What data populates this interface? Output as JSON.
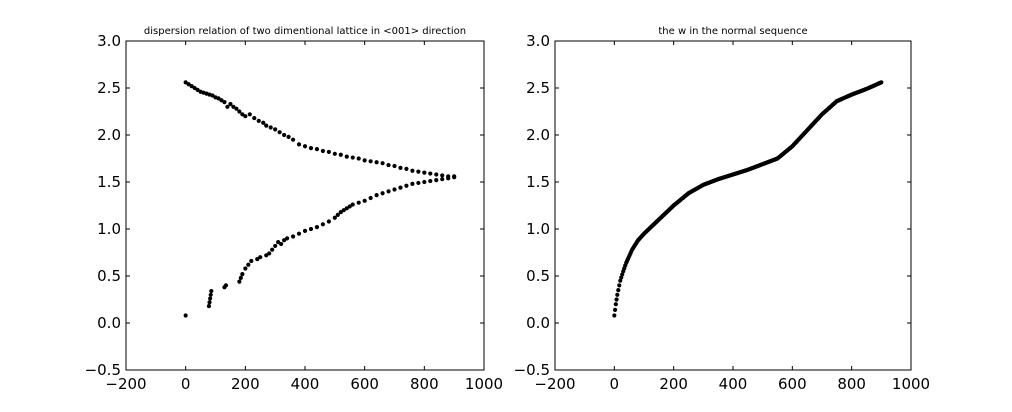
{
  "chart_data": [
    {
      "type": "scatter",
      "title": "dispersion relation of two dimentional lattice in <001> direction",
      "xlabel": "",
      "ylabel": "",
      "xlim": [
        -200,
        1000
      ],
      "ylim": [
        -0.5,
        3.0
      ],
      "xticks": [
        "−200",
        "0",
        "200",
        "400",
        "600",
        "800",
        "1000"
      ],
      "yticks": [
        "−0.5",
        "0.0",
        "0.5",
        "1.0",
        "1.5",
        "2.0",
        "2.5",
        "3.0"
      ],
      "grid": false,
      "marker_color": "#000000",
      "series": [
        {
          "name": "",
          "x": [
            0,
            10,
            20,
            30,
            40,
            50,
            60,
            70,
            80,
            90,
            100,
            110,
            120,
            130,
            140,
            150,
            160,
            170,
            180,
            190,
            200,
            215,
            230,
            245,
            260,
            270,
            285,
            300,
            315,
            330,
            345,
            360,
            380,
            400,
            420,
            440,
            460,
            480,
            500,
            520,
            540,
            560,
            580,
            600,
            620,
            640,
            660,
            680,
            700,
            720,
            740,
            760,
            780,
            800,
            820,
            840,
            860,
            880,
            900,
            0,
            78,
            80,
            82,
            84,
            86,
            130,
            135,
            180,
            185,
            190,
            200,
            210,
            220,
            240,
            250,
            270,
            280,
            290,
            300,
            310,
            320,
            330,
            340,
            360,
            380,
            400,
            420,
            440,
            460,
            480,
            500,
            510,
            520,
            530,
            540,
            550,
            560,
            580,
            600,
            620,
            640,
            660,
            680,
            700,
            720,
            740,
            760,
            780,
            800,
            820,
            840,
            860,
            880,
            900
          ],
          "y": [
            2.56,
            2.54,
            2.52,
            2.5,
            2.48,
            2.46,
            2.45,
            2.44,
            2.43,
            2.42,
            2.4,
            2.39,
            2.37,
            2.35,
            2.3,
            2.33,
            2.3,
            2.28,
            2.25,
            2.22,
            2.2,
            2.22,
            2.18,
            2.15,
            2.13,
            2.1,
            2.08,
            2.06,
            2.03,
            2.0,
            1.98,
            1.95,
            1.9,
            1.88,
            1.86,
            1.85,
            1.83,
            1.82,
            1.8,
            1.79,
            1.77,
            1.76,
            1.75,
            1.73,
            1.72,
            1.71,
            1.7,
            1.68,
            1.67,
            1.65,
            1.64,
            1.62,
            1.61,
            1.6,
            1.59,
            1.58,
            1.57,
            1.56,
            1.56,
            0.08,
            0.18,
            0.22,
            0.26,
            0.3,
            0.34,
            0.38,
            0.4,
            0.44,
            0.48,
            0.52,
            0.58,
            0.62,
            0.66,
            0.68,
            0.7,
            0.72,
            0.74,
            0.78,
            0.82,
            0.86,
            0.84,
            0.88,
            0.9,
            0.92,
            0.95,
            0.98,
            1.0,
            1.02,
            1.05,
            1.08,
            1.12,
            1.15,
            1.18,
            1.2,
            1.22,
            1.24,
            1.26,
            1.28,
            1.3,
            1.33,
            1.36,
            1.38,
            1.4,
            1.42,
            1.44,
            1.46,
            1.48,
            1.49,
            1.5,
            1.51,
            1.52,
            1.53,
            1.54,
            1.55
          ]
        }
      ]
    },
    {
      "type": "scatter",
      "title": "the w in the normal sequence",
      "xlabel": "",
      "ylabel": "",
      "xlim": [
        -200,
        1000
      ],
      "ylim": [
        -0.5,
        3.0
      ],
      "xticks": [
        "−200",
        "0",
        "200",
        "400",
        "600",
        "800",
        "1000"
      ],
      "yticks": [
        "−0.5",
        "0.0",
        "0.5",
        "1.0",
        "1.5",
        "2.0",
        "2.5",
        "3.0"
      ],
      "grid": false,
      "marker_color": "#000000",
      "series": [
        {
          "name": "",
          "curve_x": [
            0,
            5,
            10,
            20,
            30,
            40,
            60,
            80,
            100,
            150,
            200,
            250,
            300,
            350,
            400,
            450,
            500,
            550,
            600,
            650,
            700,
            750,
            800,
            850,
            900
          ],
          "curve_y": [
            0.08,
            0.2,
            0.3,
            0.45,
            0.55,
            0.64,
            0.78,
            0.88,
            0.95,
            1.1,
            1.25,
            1.38,
            1.47,
            1.53,
            1.58,
            1.63,
            1.69,
            1.75,
            1.88,
            2.05,
            2.22,
            2.36,
            2.43,
            2.49,
            2.56
          ]
        }
      ]
    }
  ]
}
